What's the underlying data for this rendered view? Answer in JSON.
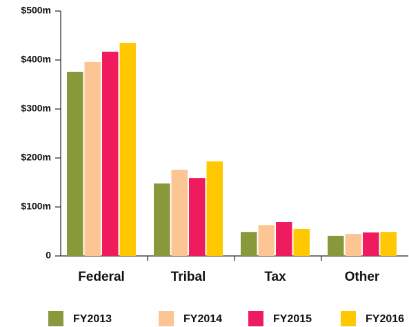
{
  "chart_data": {
    "type": "bar",
    "categories": [
      "Federal",
      "Tribal",
      "Tax",
      "Other"
    ],
    "series": [
      {
        "name": "FY2013",
        "color": "#87993b",
        "values": [
          376,
          148,
          49,
          41
        ]
      },
      {
        "name": "FY2014",
        "color": "#fdc593",
        "values": [
          396,
          176,
          63,
          45
        ]
      },
      {
        "name": "FY2015",
        "color": "#ee1c5e",
        "values": [
          417,
          159,
          69,
          48
        ]
      },
      {
        "name": "FY2016",
        "color": "#ffc800",
        "values": [
          435,
          193,
          55,
          49
        ]
      }
    ],
    "ylim": [
      0,
      500
    ],
    "yticks": [
      0,
      {
        "value": 100,
        "label": "$100m"
      },
      {
        "value": 200,
        "label": "$200m"
      },
      {
        "value": 300,
        "label": "$300m"
      },
      {
        "value": 400,
        "label": "$400m"
      },
      {
        "value": 500,
        "label": "$500m"
      }
    ],
    "legend": "bottom"
  }
}
